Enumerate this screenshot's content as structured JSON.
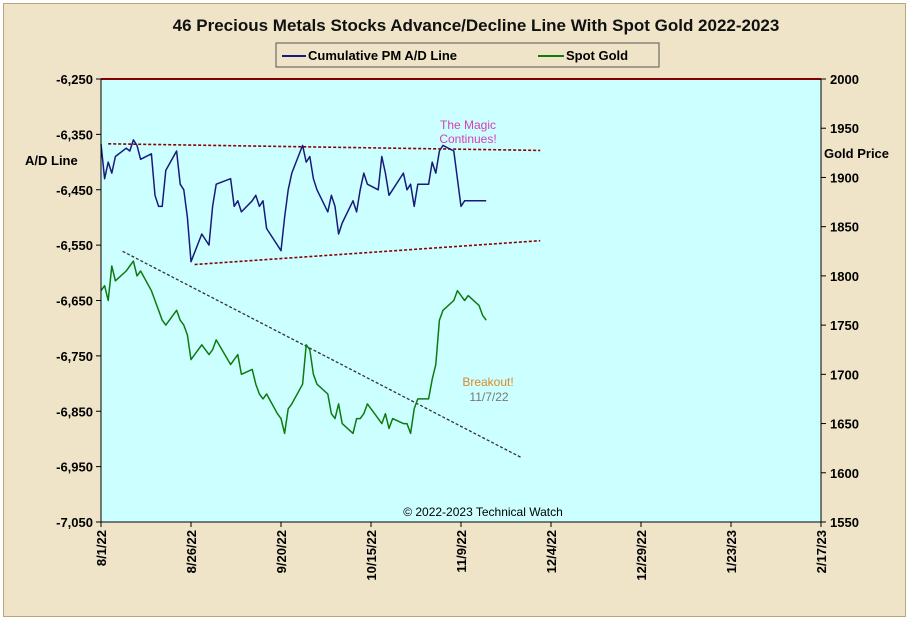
{
  "chart_data": {
    "type": "line",
    "title": "46 Precious Metals Stocks Advance/Decline Line With Spot Gold 2022-2023",
    "y_left": {
      "label": "A/D Line",
      "range": [
        -7050,
        -6250
      ],
      "ticks": [
        "-6,250",
        "-6,350",
        "-6,450",
        "-6,550",
        "-6,650",
        "-6,750",
        "-6,850",
        "-6,950",
        "-7,050"
      ]
    },
    "y_right": {
      "label": "Gold Price",
      "range": [
        1550,
        2000
      ],
      "ticks": [
        "2000",
        "1950",
        "1900",
        "1850",
        "1800",
        "1750",
        "1700",
        "1650",
        "1600",
        "1550"
      ]
    },
    "x_ticks": [
      "8/1/22",
      "8/26/22",
      "9/20/22",
      "10/15/22",
      "11/9/22",
      "12/4/22",
      "12/29/22",
      "1/23/23",
      "2/17/23"
    ],
    "x_start": "8/1/22",
    "x_end": "2/17/23",
    "grid": false,
    "legend_position": "top-center",
    "series": [
      {
        "name": "Cumulative PM A/D Line",
        "color": "#1a1a7a",
        "axis": "left",
        "x": [
          "8/1/22",
          "8/2/22",
          "8/3/22",
          "8/4/22",
          "8/5/22",
          "8/8/22",
          "8/9/22",
          "8/10/22",
          "8/11/22",
          "8/12/22",
          "8/15/22",
          "8/16/22",
          "8/17/22",
          "8/18/22",
          "8/19/22",
          "8/22/22",
          "8/23/22",
          "8/24/22",
          "8/25/22",
          "8/26/22",
          "8/29/22",
          "8/30/22",
          "8/31/22",
          "9/1/22",
          "9/2/22",
          "9/6/22",
          "9/7/22",
          "9/8/22",
          "9/9/22",
          "9/12/22",
          "9/13/22",
          "9/14/22",
          "9/15/22",
          "9/16/22",
          "9/19/22",
          "9/20/22",
          "9/21/22",
          "9/22/22",
          "9/23/22",
          "9/26/22",
          "9/27/22",
          "9/28/22",
          "9/29/22",
          "9/30/22",
          "10/3/22",
          "10/4/22",
          "10/5/22",
          "10/6/22",
          "10/7/22",
          "10/10/22",
          "10/11/22",
          "10/12/22",
          "10/13/22",
          "10/14/22",
          "10/17/22",
          "10/18/22",
          "10/19/22",
          "10/20/22",
          "10/21/22",
          "10/24/22",
          "10/25/22",
          "10/26/22",
          "10/27/22",
          "10/28/22",
          "10/31/22",
          "11/1/22",
          "11/2/22",
          "11/3/22",
          "11/4/22",
          "11/7/22",
          "11/8/22",
          "11/9/22",
          "11/10/22",
          "11/11/22",
          "11/14/22",
          "11/15/22",
          "11/16/22"
        ],
        "y": [
          -6367,
          -6430,
          -6400,
          -6420,
          -6390,
          -6375,
          -6380,
          -6360,
          -6370,
          -6395,
          -6385,
          -6460,
          -6480,
          -6480,
          -6415,
          -6380,
          -6440,
          -6450,
          -6500,
          -6580,
          -6530,
          -6540,
          -6550,
          -6480,
          -6440,
          -6430,
          -6480,
          -6470,
          -6490,
          -6470,
          -6460,
          -6480,
          -6470,
          -6520,
          -6550,
          -6560,
          -6500,
          -6450,
          -6420,
          -6370,
          -6400,
          -6390,
          -6430,
          -6450,
          -6490,
          -6460,
          -6480,
          -6530,
          -6510,
          -6470,
          -6490,
          -6450,
          -6420,
          -6440,
          -6450,
          -6390,
          -6420,
          -6460,
          -6450,
          -6420,
          -6450,
          -6440,
          -6480,
          -6440,
          -6440,
          -6400,
          -6420,
          -6380,
          -6370,
          -6380,
          -6430,
          -6480,
          -6470,
          -6470,
          -6470,
          -6470,
          -6470
        ]
      },
      {
        "name": "Spot Gold",
        "color": "#0e7a0e",
        "axis": "right",
        "x": [
          "8/1/22",
          "8/2/22",
          "8/3/22",
          "8/4/22",
          "8/5/22",
          "8/8/22",
          "8/9/22",
          "8/10/22",
          "8/11/22",
          "8/12/22",
          "8/15/22",
          "8/16/22",
          "8/17/22",
          "8/18/22",
          "8/19/22",
          "8/22/22",
          "8/23/22",
          "8/24/22",
          "8/25/22",
          "8/26/22",
          "8/29/22",
          "8/30/22",
          "8/31/22",
          "9/1/22",
          "9/2/22",
          "9/6/22",
          "9/7/22",
          "9/8/22",
          "9/9/22",
          "9/12/22",
          "9/13/22",
          "9/14/22",
          "9/15/22",
          "9/16/22",
          "9/19/22",
          "9/20/22",
          "9/21/22",
          "9/22/22",
          "9/23/22",
          "9/26/22",
          "9/27/22",
          "9/28/22",
          "9/29/22",
          "9/30/22",
          "10/3/22",
          "10/4/22",
          "10/5/22",
          "10/6/22",
          "10/7/22",
          "10/10/22",
          "10/11/22",
          "10/12/22",
          "10/13/22",
          "10/14/22",
          "10/17/22",
          "10/18/22",
          "10/19/22",
          "10/20/22",
          "10/21/22",
          "10/24/22",
          "10/25/22",
          "10/26/22",
          "10/27/22",
          "10/28/22",
          "10/31/22",
          "11/1/22",
          "11/2/22",
          "11/3/22",
          "11/4/22",
          "11/7/22",
          "11/8/22",
          "11/9/22",
          "11/10/22",
          "11/11/22",
          "11/14/22",
          "11/15/22",
          "11/16/22"
        ],
        "y": [
          1785,
          1790,
          1775,
          1810,
          1795,
          1805,
          1810,
          1815,
          1800,
          1805,
          1785,
          1775,
          1765,
          1755,
          1750,
          1765,
          1755,
          1750,
          1740,
          1715,
          1730,
          1725,
          1720,
          1725,
          1735,
          1710,
          1715,
          1720,
          1700,
          1705,
          1690,
          1680,
          1675,
          1680,
          1660,
          1655,
          1640,
          1665,
          1670,
          1690,
          1730,
          1725,
          1700,
          1690,
          1680,
          1660,
          1655,
          1670,
          1650,
          1640,
          1655,
          1655,
          1660,
          1670,
          1655,
          1650,
          1660,
          1645,
          1655,
          1650,
          1650,
          1640,
          1665,
          1675,
          1675,
          1695,
          1710,
          1755,
          1765,
          1775,
          1785,
          1780,
          1775,
          1780,
          1770,
          1760,
          1755
        ]
      }
    ],
    "trendlines": [
      {
        "from": {
          "x": "8/3/22",
          "y": -6367
        },
        "to": {
          "x": "12/1/22",
          "y": -6379
        },
        "axis": "left",
        "color": "#8b0000"
      },
      {
        "from": {
          "x": "8/27/22",
          "y": -6585
        },
        "to": {
          "x": "12/1/22",
          "y": -6542
        },
        "axis": "left",
        "color": "#8b0000"
      },
      {
        "from": {
          "x": "8/7/22",
          "y": 1825
        },
        "to": {
          "x": "11/26/22",
          "y": 1615
        },
        "axis": "right",
        "color": "#333333"
      }
    ],
    "annotations": [
      {
        "text": "The Magic",
        "color": "#d63fb2"
      },
      {
        "text": "Continues!",
        "color": "#d63fb2"
      },
      {
        "text": "Breakout!",
        "color": "#d98a2a"
      },
      {
        "text": "11/7/22",
        "color": "#777777"
      },
      {
        "text": "© 2022-2023  Technical  Watch",
        "color": "#000000"
      }
    ]
  }
}
